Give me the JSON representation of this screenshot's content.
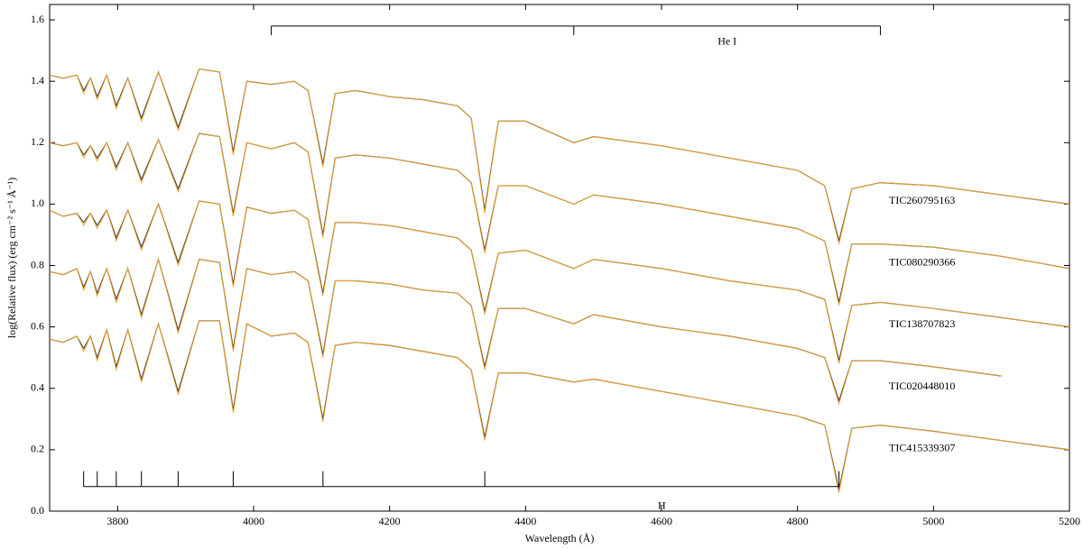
{
  "chart_data": {
    "type": "line",
    "x_label": "Wavelength (Å)",
    "y_label": "log(Relative flux) (erg cm⁻² s⁻¹ Å⁻¹)",
    "xlim": [
      3700,
      5200
    ],
    "xticks": [
      3800,
      4000,
      4200,
      4400,
      4600,
      4800,
      5000,
      5200
    ],
    "ylim": [
      0,
      1.65
    ],
    "yticks": [
      {
        "value": 0,
        "label": "0.0"
      },
      0.2,
      0.4,
      0.6,
      0.8,
      {
        "value": 1,
        "label": "1.0"
      },
      1.2,
      1.4,
      1.6
    ],
    "x": [
      3700,
      3720,
      3740,
      3750,
      3760,
      3770,
      3784,
      3798,
      3815,
      3835,
      3860,
      3889,
      3920,
      3950,
      3970,
      3990,
      4026,
      4060,
      4080,
      4102,
      4120,
      4150,
      4200,
      4250,
      4300,
      4320,
      4340,
      4360,
      4400,
      4471,
      4500,
      4600,
      4700,
      4800,
      4840,
      4861,
      4880,
      4922,
      5000,
      5100,
      5200
    ],
    "series": [
      {
        "name": "TIC260795163",
        "color": "#4a4a4a",
        "values": [
          1.42,
          1.41,
          1.42,
          1.37,
          1.41,
          1.35,
          1.42,
          1.32,
          1.41,
          1.28,
          1.43,
          1.25,
          1.44,
          1.43,
          1.17,
          1.4,
          1.39,
          1.4,
          1.37,
          1.13,
          1.36,
          1.37,
          1.35,
          1.34,
          1.32,
          1.28,
          0.98,
          1.27,
          1.27,
          1.2,
          1.22,
          1.19,
          1.15,
          1.11,
          1.06,
          0.88,
          1.05,
          1.07,
          1.06,
          1.03,
          1.0
        ],
        "model": {
          "color": "#f5a623",
          "values": [
            1.42,
            1.41,
            1.42,
            1.36,
            1.41,
            1.34,
            1.42,
            1.31,
            1.41,
            1.27,
            1.43,
            1.24,
            1.44,
            1.43,
            1.16,
            1.4,
            1.39,
            1.4,
            1.37,
            1.12,
            1.36,
            1.37,
            1.35,
            1.34,
            1.32,
            1.28,
            0.97,
            1.27,
            1.27,
            1.2,
            1.22,
            1.19,
            1.15,
            1.11,
            1.06,
            0.87,
            1.05,
            1.07,
            1.06,
            1.03,
            1.0
          ]
        }
      },
      {
        "name": "TIC080290366",
        "color": "#4a4a4a",
        "values": [
          1.2,
          1.19,
          1.2,
          1.16,
          1.19,
          1.15,
          1.2,
          1.12,
          1.2,
          1.08,
          1.21,
          1.05,
          1.23,
          1.22,
          0.97,
          1.2,
          1.18,
          1.2,
          1.17,
          0.9,
          1.15,
          1.16,
          1.15,
          1.13,
          1.11,
          1.07,
          0.85,
          1.06,
          1.06,
          1.0,
          1.03,
          1.0,
          0.96,
          0.92,
          0.88,
          0.68,
          0.87,
          0.87,
          0.86,
          0.83,
          0.79
        ],
        "model": {
          "color": "#f5a623",
          "values": [
            1.2,
            1.19,
            1.2,
            1.15,
            1.19,
            1.14,
            1.2,
            1.11,
            1.2,
            1.07,
            1.21,
            1.04,
            1.23,
            1.22,
            0.96,
            1.2,
            1.18,
            1.2,
            1.17,
            0.89,
            1.15,
            1.16,
            1.15,
            1.13,
            1.11,
            1.07,
            0.84,
            1.06,
            1.06,
            1.0,
            1.03,
            1.0,
            0.96,
            0.92,
            0.88,
            0.67,
            0.87,
            0.87,
            0.86,
            0.83,
            0.79
          ]
        }
      },
      {
        "name": "TIC138707823",
        "color": "#4a4a4a",
        "values": [
          0.98,
          0.96,
          0.97,
          0.94,
          0.97,
          0.93,
          0.98,
          0.89,
          0.98,
          0.86,
          1.0,
          0.81,
          1.01,
          1.0,
          0.74,
          0.99,
          0.97,
          0.98,
          0.95,
          0.71,
          0.94,
          0.94,
          0.93,
          0.91,
          0.89,
          0.85,
          0.65,
          0.84,
          0.85,
          0.79,
          0.82,
          0.79,
          0.75,
          0.72,
          0.69,
          0.49,
          0.67,
          0.68,
          0.66,
          0.63,
          0.6
        ],
        "model": {
          "color": "#f5a623",
          "values": [
            0.98,
            0.96,
            0.97,
            0.93,
            0.97,
            0.92,
            0.98,
            0.88,
            0.98,
            0.85,
            1.0,
            0.8,
            1.01,
            1.0,
            0.73,
            0.99,
            0.97,
            0.98,
            0.95,
            0.7,
            0.94,
            0.94,
            0.93,
            0.91,
            0.89,
            0.85,
            0.64,
            0.84,
            0.85,
            0.79,
            0.82,
            0.79,
            0.75,
            0.72,
            0.69,
            0.48,
            0.67,
            0.68,
            0.66,
            0.63,
            0.6
          ]
        }
      },
      {
        "name": "TIC020448010",
        "color": "#4a4a4a",
        "values": [
          0.78,
          0.77,
          0.79,
          0.73,
          0.78,
          0.71,
          0.79,
          0.69,
          0.79,
          0.64,
          0.82,
          0.59,
          0.82,
          0.81,
          0.53,
          0.79,
          0.77,
          0.78,
          0.75,
          0.51,
          0.75,
          0.75,
          0.74,
          0.72,
          0.71,
          0.67,
          0.47,
          0.66,
          0.66,
          0.61,
          0.64,
          0.6,
          0.57,
          0.53,
          0.5,
          0.36,
          0.49,
          0.49,
          0.47,
          0.44,
          null
        ],
        "model": {
          "color": "#f5a623",
          "values": [
            0.78,
            0.77,
            0.79,
            0.72,
            0.78,
            0.7,
            0.79,
            0.68,
            0.79,
            0.63,
            0.82,
            0.58,
            0.82,
            0.81,
            0.52,
            0.79,
            0.77,
            0.78,
            0.75,
            0.5,
            0.75,
            0.75,
            0.74,
            0.72,
            0.71,
            0.67,
            0.46,
            0.66,
            0.66,
            0.61,
            0.64,
            0.6,
            0.57,
            0.53,
            0.5,
            0.35,
            0.49,
            0.49,
            0.47,
            0.44,
            null
          ]
        }
      },
      {
        "name": "TIC415339307",
        "color": "#4a4a4a",
        "values": [
          0.56,
          0.55,
          0.57,
          0.53,
          0.57,
          0.5,
          0.59,
          0.47,
          0.59,
          0.43,
          0.61,
          0.39,
          0.62,
          0.62,
          0.33,
          0.61,
          0.57,
          0.58,
          0.55,
          0.3,
          0.54,
          0.55,
          0.54,
          0.52,
          0.5,
          0.46,
          0.24,
          0.45,
          0.45,
          0.42,
          0.43,
          0.39,
          0.35,
          0.31,
          0.28,
          0.07,
          0.27,
          0.28,
          0.26,
          0.23,
          0.2
        ],
        "model": {
          "color": "#f5a623",
          "values": [
            0.56,
            0.55,
            0.57,
            0.52,
            0.57,
            0.49,
            0.59,
            0.46,
            0.59,
            0.42,
            0.61,
            0.38,
            0.62,
            0.62,
            0.32,
            0.61,
            0.57,
            0.58,
            0.55,
            0.29,
            0.54,
            0.55,
            0.54,
            0.52,
            0.5,
            0.46,
            0.23,
            0.45,
            0.45,
            0.42,
            0.43,
            0.39,
            0.35,
            0.31,
            0.28,
            0.06,
            0.27,
            0.28,
            0.26,
            0.23,
            0.2
          ]
        }
      }
    ],
    "annotations": [
      {
        "text": "He I",
        "positions": [
          4026,
          4471,
          4922
        ]
      },
      {
        "text": "H",
        "positions": [
          3750,
          3770,
          3798,
          3835,
          3889,
          3970,
          4102,
          4340,
          4861
        ]
      }
    ]
  }
}
